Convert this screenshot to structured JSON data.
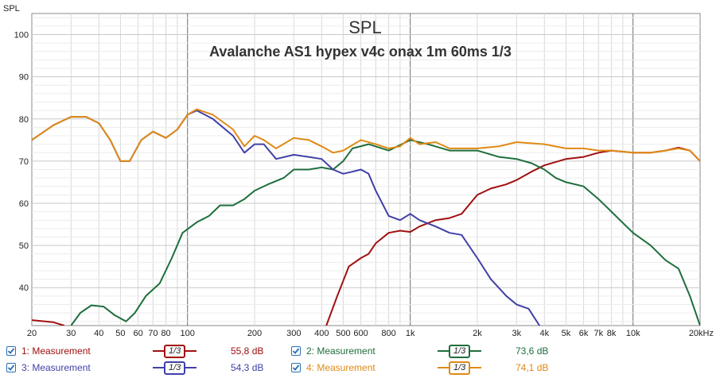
{
  "chart_data": {
    "type": "line",
    "title": "SPL",
    "subtitle": "Avalanche AS1 hypex v4c onax 1m 60ms 1/3",
    "ylabel": "SPL",
    "xlabel": "",
    "x_scale": "log",
    "xlim": [
      20,
      20000
    ],
    "ylim": [
      31,
      105
    ],
    "grid": true,
    "y_ticks": [
      40,
      50,
      60,
      70,
      80,
      90,
      100
    ],
    "x_tick_labels": [
      {
        "f": 20,
        "label": "20"
      },
      {
        "f": 30,
        "label": "30"
      },
      {
        "f": 40,
        "label": "40"
      },
      {
        "f": 50,
        "label": "50"
      },
      {
        "f": 60,
        "label": "60"
      },
      {
        "f": 70,
        "label": "70"
      },
      {
        "f": 80,
        "label": "80"
      },
      {
        "f": 100,
        "label": "100"
      },
      {
        "f": 200,
        "label": "200"
      },
      {
        "f": 300,
        "label": "300"
      },
      {
        "f": 400,
        "label": "400"
      },
      {
        "f": 500,
        "label": "500"
      },
      {
        "f": 600,
        "label": "600"
      },
      {
        "f": 800,
        "label": "800"
      },
      {
        "f": 1000,
        "label": "1k"
      },
      {
        "f": 2000,
        "label": "2k"
      },
      {
        "f": 3000,
        "label": "3k"
      },
      {
        "f": 4000,
        "label": "4k"
      },
      {
        "f": 5000,
        "label": "5k"
      },
      {
        "f": 6000,
        "label": "6k"
      },
      {
        "f": 7000,
        "label": "7k"
      },
      {
        "f": 8000,
        "label": "8k"
      },
      {
        "f": 10000,
        "label": "10k"
      },
      {
        "f": 20000,
        "label": "20kHz"
      }
    ],
    "series": [
      {
        "name": "1: Measurement",
        "color": "#a01010",
        "points": [
          [
            20,
            32.3
          ],
          [
            25,
            31.8
          ],
          [
            28,
            31
          ]
        ]
      },
      {
        "name": "1: Measurement",
        "color": "#a01010",
        "points": [
          [
            420,
            31
          ],
          [
            470,
            38
          ],
          [
            530,
            45
          ],
          [
            600,
            47
          ],
          [
            650,
            48
          ],
          [
            700,
            50.5
          ],
          [
            800,
            53
          ],
          [
            900,
            53.5
          ],
          [
            1000,
            53.2
          ],
          [
            1100,
            54.5
          ],
          [
            1300,
            56
          ],
          [
            1500,
            56.5
          ],
          [
            1700,
            57.5
          ],
          [
            2000,
            62
          ],
          [
            2300,
            63.5
          ],
          [
            2700,
            64.5
          ],
          [
            3000,
            65.5
          ],
          [
            3500,
            67.5
          ],
          [
            4000,
            69
          ],
          [
            5000,
            70.5
          ],
          [
            6000,
            71
          ],
          [
            7000,
            72
          ],
          [
            8000,
            72.5
          ],
          [
            10000,
            72
          ],
          [
            12000,
            72
          ],
          [
            14000,
            72.5
          ],
          [
            16000,
            73.2
          ],
          [
            18000,
            72.5
          ],
          [
            20000,
            70
          ]
        ]
      },
      {
        "name": "2: Measurement",
        "color": "#1e6e3c",
        "points": [
          [
            30,
            31
          ],
          [
            33,
            34
          ],
          [
            37,
            35.8
          ],
          [
            42,
            35.5
          ],
          [
            47,
            33.5
          ],
          [
            53,
            32
          ],
          [
            58,
            34
          ],
          [
            65,
            38
          ],
          [
            75,
            41
          ],
          [
            85,
            47
          ],
          [
            95,
            53
          ],
          [
            110,
            55.5
          ],
          [
            125,
            57
          ],
          [
            140,
            59.5
          ],
          [
            160,
            59.5
          ],
          [
            180,
            61
          ],
          [
            200,
            63
          ],
          [
            230,
            64.5
          ],
          [
            270,
            66
          ],
          [
            300,
            68
          ],
          [
            350,
            68
          ],
          [
            400,
            68.5
          ],
          [
            450,
            68
          ],
          [
            500,
            70
          ],
          [
            550,
            73
          ],
          [
            650,
            74
          ],
          [
            800,
            72.5
          ],
          [
            1000,
            75
          ],
          [
            1200,
            74
          ],
          [
            1500,
            72.5
          ],
          [
            2000,
            72.5
          ],
          [
            2500,
            71
          ],
          [
            3000,
            70.5
          ],
          [
            3500,
            69.5
          ],
          [
            4000,
            68
          ],
          [
            4500,
            66
          ],
          [
            5000,
            65
          ],
          [
            6000,
            64
          ],
          [
            7000,
            61
          ],
          [
            8000,
            58
          ],
          [
            10000,
            53
          ],
          [
            12000,
            50
          ],
          [
            14000,
            46.5
          ],
          [
            16000,
            44.5
          ],
          [
            18000,
            38
          ],
          [
            20000,
            31
          ]
        ]
      },
      {
        "name": "3: Measurement",
        "color": "#4040a8",
        "points": [
          [
            20,
            75
          ],
          [
            25,
            78.5
          ],
          [
            30,
            80.5
          ],
          [
            35,
            80.5
          ],
          [
            40,
            79
          ],
          [
            45,
            75
          ],
          [
            50,
            70
          ],
          [
            55,
            70
          ],
          [
            62,
            75
          ],
          [
            70,
            77
          ],
          [
            80,
            75.5
          ],
          [
            90,
            77.5
          ],
          [
            100,
            81
          ],
          [
            110,
            82
          ],
          [
            130,
            80
          ],
          [
            160,
            76
          ],
          [
            180,
            72
          ],
          [
            200,
            74
          ],
          [
            220,
            74
          ],
          [
            250,
            70.5
          ],
          [
            300,
            71.5
          ],
          [
            350,
            71
          ],
          [
            400,
            70.5
          ],
          [
            450,
            68
          ],
          [
            500,
            67
          ],
          [
            550,
            67.5
          ],
          [
            600,
            68
          ],
          [
            650,
            67
          ],
          [
            700,
            63
          ],
          [
            800,
            57
          ],
          [
            900,
            56
          ],
          [
            1000,
            57.5
          ],
          [
            1100,
            56
          ],
          [
            1300,
            54.5
          ],
          [
            1500,
            53
          ],
          [
            1700,
            52.5
          ],
          [
            2000,
            47
          ],
          [
            2300,
            42
          ],
          [
            2700,
            38
          ],
          [
            3000,
            36
          ],
          [
            3400,
            35
          ],
          [
            3800,
            31
          ]
        ]
      },
      {
        "name": "4: Measurement",
        "color": "#e08a14",
        "points": [
          [
            20,
            75
          ],
          [
            25,
            78.5
          ],
          [
            30,
            80.5
          ],
          [
            35,
            80.5
          ],
          [
            40,
            79
          ],
          [
            45,
            75
          ],
          [
            50,
            70
          ],
          [
            55,
            70
          ],
          [
            62,
            75
          ],
          [
            70,
            77
          ],
          [
            80,
            75.5
          ],
          [
            90,
            77.5
          ],
          [
            100,
            81
          ],
          [
            110,
            82.3
          ],
          [
            130,
            81
          ],
          [
            160,
            77.5
          ],
          [
            180,
            73.5
          ],
          [
            200,
            76
          ],
          [
            220,
            75
          ],
          [
            250,
            73
          ],
          [
            300,
            75.5
          ],
          [
            350,
            75
          ],
          [
            400,
            73.5
          ],
          [
            450,
            72
          ],
          [
            500,
            72.5
          ],
          [
            600,
            75
          ],
          [
            700,
            74
          ],
          [
            800,
            73
          ],
          [
            900,
            73.5
          ],
          [
            1000,
            75.5
          ],
          [
            1100,
            74
          ],
          [
            1300,
            74.5
          ],
          [
            1500,
            73
          ],
          [
            2000,
            73
          ],
          [
            2500,
            73.5
          ],
          [
            3000,
            74.5
          ],
          [
            4000,
            74
          ],
          [
            5000,
            73
          ],
          [
            6000,
            73
          ],
          [
            7000,
            72.5
          ],
          [
            8000,
            72.5
          ],
          [
            10000,
            72
          ],
          [
            12000,
            72
          ],
          [
            14000,
            72.5
          ],
          [
            16000,
            73
          ],
          [
            18000,
            72.5
          ],
          [
            20000,
            70
          ]
        ]
      }
    ]
  },
  "legend": [
    {
      "id": 1,
      "label": "1: Measurement",
      "smoothing": "1/3",
      "value": "55,8 dB",
      "color": "#a01010"
    },
    {
      "id": 2,
      "label": "2: Measurement",
      "smoothing": "1/3",
      "value": "73,6 dB",
      "color": "#1e6e3c"
    },
    {
      "id": 3,
      "label": "3: Measurement",
      "smoothing": "1/3",
      "value": "54,3 dB",
      "color": "#4040a8"
    },
    {
      "id": 4,
      "label": "4: Measurement",
      "smoothing": "1/3",
      "value": "74,1 dB",
      "color": "#e08a14"
    }
  ]
}
